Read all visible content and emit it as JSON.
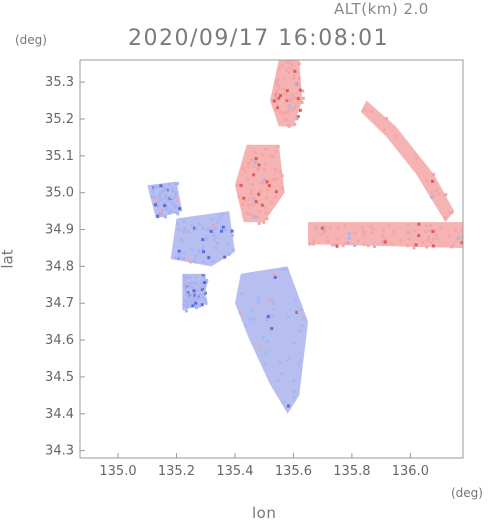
{
  "header": {
    "alt_label": "ALT(km) 2.0",
    "timestamp": "2020/09/17 16:08:01"
  },
  "chart_data": {
    "type": "heatmap",
    "xlabel": "lon",
    "ylabel": "lat",
    "x_unit": "(deg)",
    "y_unit": "(deg)",
    "xlim": [
      134.87,
      136.18
    ],
    "ylim": [
      34.28,
      35.36
    ],
    "x_ticks": [
      135.0,
      135.2,
      135.4,
      135.6,
      135.8,
      136.0
    ],
    "x_tick_labels": [
      "135.0",
      "135.2",
      "135.4",
      "135.6",
      "135.8",
      "136.0"
    ],
    "y_ticks": [
      34.3,
      34.4,
      34.5,
      34.6,
      34.7,
      34.8,
      34.9,
      35.0,
      35.1,
      35.2,
      35.3
    ],
    "y_tick_labels": [
      "34.3",
      "34.4",
      "34.5",
      "34.6",
      "34.7",
      "34.8",
      "34.9",
      "35.0",
      "35.1",
      "35.2",
      "35.3"
    ],
    "grid": false,
    "colors": {
      "positive": "#f4a6a6",
      "negative": "#aab4ee",
      "strong_positive": "#e05a5a",
      "strong_negative": "#5a6ae0"
    },
    "regions": [
      {
        "name": "north-red-band",
        "sign": "positive",
        "polygon": [
          [
            135.55,
            35.36
          ],
          [
            135.62,
            35.36
          ],
          [
            135.63,
            35.25
          ],
          [
            135.6,
            35.18
          ],
          [
            135.55,
            35.18
          ],
          [
            135.52,
            35.25
          ]
        ]
      },
      {
        "name": "central-red",
        "sign": "positive",
        "polygon": [
          [
            135.44,
            35.13
          ],
          [
            135.55,
            35.13
          ],
          [
            135.57,
            35.0
          ],
          [
            135.5,
            34.92
          ],
          [
            135.43,
            34.92
          ],
          [
            135.4,
            35.02
          ]
        ]
      },
      {
        "name": "east-red-band",
        "sign": "positive",
        "polygon": [
          [
            135.65,
            34.92
          ],
          [
            136.18,
            34.92
          ],
          [
            136.18,
            34.85
          ],
          [
            135.65,
            34.86
          ]
        ]
      },
      {
        "name": "northeast-red-arc",
        "sign": "positive",
        "polygon": [
          [
            135.85,
            35.25
          ],
          [
            135.95,
            35.18
          ],
          [
            136.08,
            35.05
          ],
          [
            136.15,
            34.95
          ],
          [
            136.12,
            34.92
          ],
          [
            136.02,
            35.05
          ],
          [
            135.92,
            35.15
          ],
          [
            135.83,
            35.22
          ]
        ]
      },
      {
        "name": "west-blue",
        "sign": "negative",
        "polygon": [
          [
            135.2,
            34.93
          ],
          [
            135.38,
            34.95
          ],
          [
            135.4,
            34.84
          ],
          [
            135.32,
            34.8
          ],
          [
            135.18,
            34.82
          ]
        ]
      },
      {
        "name": "west-blue-small",
        "sign": "negative",
        "polygon": [
          [
            135.1,
            35.02
          ],
          [
            135.2,
            35.03
          ],
          [
            135.22,
            34.95
          ],
          [
            135.13,
            34.93
          ]
        ]
      },
      {
        "name": "south-blue",
        "sign": "negative",
        "polygon": [
          [
            135.42,
            34.78
          ],
          [
            135.58,
            34.8
          ],
          [
            135.65,
            34.65
          ],
          [
            135.62,
            34.45
          ],
          [
            135.58,
            34.4
          ],
          [
            135.52,
            34.48
          ],
          [
            135.45,
            34.6
          ],
          [
            135.4,
            34.7
          ]
        ]
      },
      {
        "name": "southwest-blue",
        "sign": "negative",
        "polygon": [
          [
            135.22,
            34.78
          ],
          [
            135.3,
            34.78
          ],
          [
            135.3,
            34.7
          ],
          [
            135.22,
            34.68
          ]
        ]
      }
    ]
  }
}
